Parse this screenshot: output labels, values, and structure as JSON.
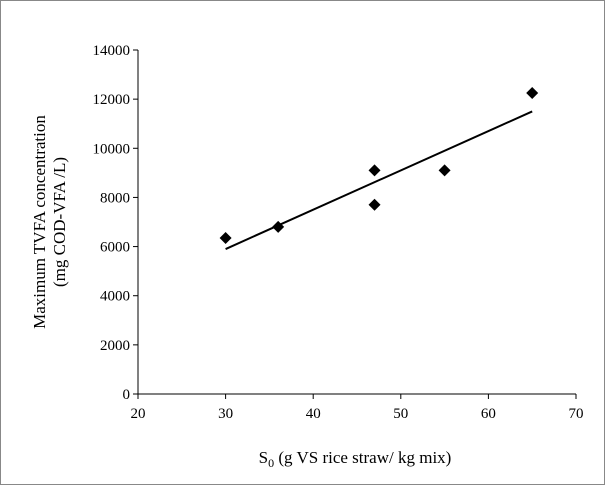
{
  "chart_data": {
    "type": "scatter",
    "x_label": {
      "symbol": "S",
      "subscript": "0",
      "text": " (g VS rice straw/ kg mix)"
    },
    "y_label": [
      "Maximum TVFA concentration",
      "(mg COD-VFA /L)"
    ],
    "series": [
      {
        "color": "#000000",
        "x": [
          30,
          36,
          47,
          47,
          55,
          65
        ],
        "values": [
          6350,
          6800,
          9100,
          7700,
          9100,
          12250
        ]
      }
    ],
    "trendline": {
      "color": "#000000",
      "x": [
        30,
        65
      ],
      "values": [
        5900,
        11500
      ]
    },
    "xlim": [
      20,
      70
    ],
    "xticks": [
      20,
      30,
      40,
      50,
      60,
      70
    ],
    "ylim": [
      0,
      14000
    ],
    "yticks": [
      0,
      2000,
      4000,
      6000,
      8000,
      10000,
      12000,
      14000
    ],
    "grid": false
  }
}
